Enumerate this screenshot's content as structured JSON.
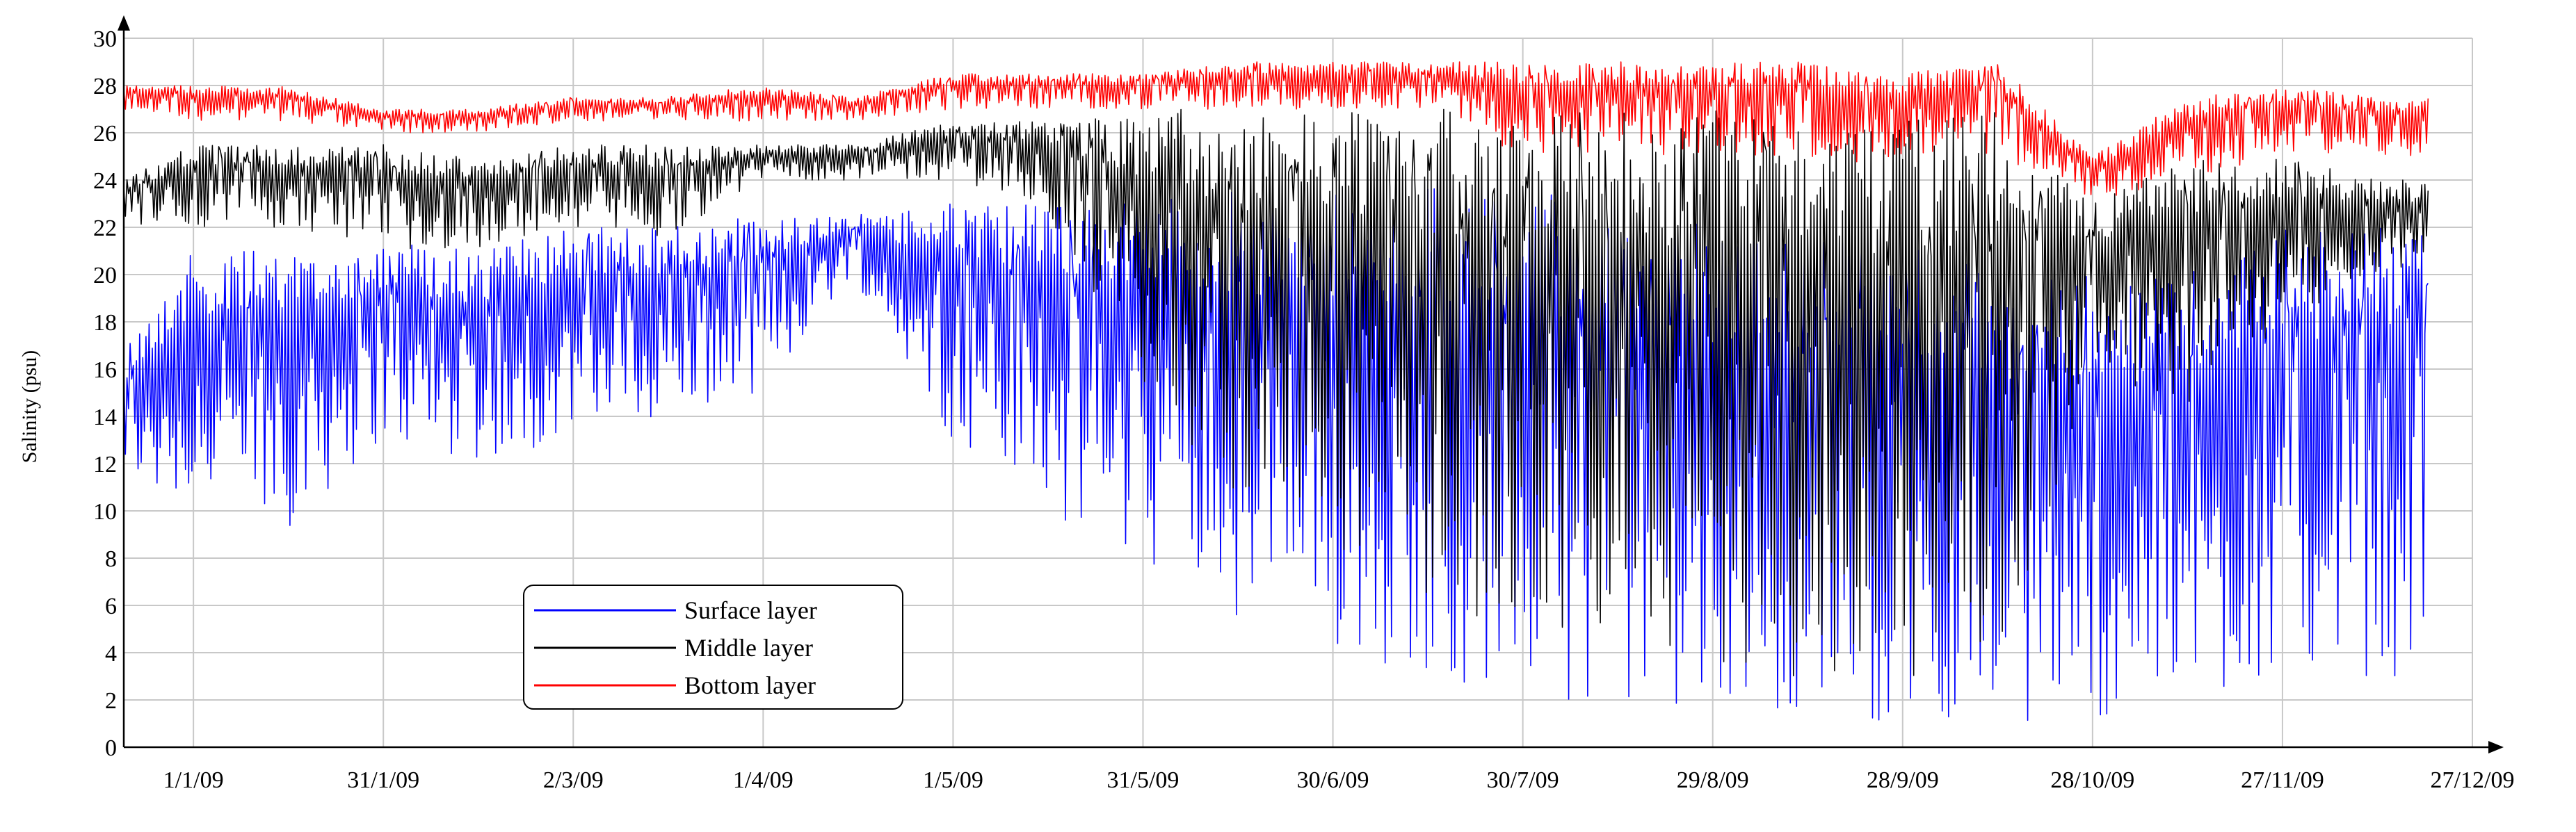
{
  "chart_data": {
    "type": "line",
    "title": "",
    "xlabel": "",
    "ylabel": "Salinity (psu)",
    "xlim": [
      "2008-12-21",
      "2009-12-27"
    ],
    "ylim": [
      0,
      30
    ],
    "yticks": [
      0,
      2,
      4,
      6,
      8,
      10,
      12,
      14,
      16,
      18,
      20,
      22,
      24,
      26,
      28,
      30
    ],
    "xticks": [
      "1/1/09",
      "31/1/09",
      "2/3/09",
      "1/4/09",
      "1/5/09",
      "31/5/09",
      "30/6/09",
      "30/7/09",
      "29/8/09",
      "28/9/09",
      "28/10/09",
      "27/11/09",
      "27/12/09"
    ],
    "xtick_dates": [
      "2009-01-01",
      "2009-01-31",
      "2009-03-02",
      "2009-04-01",
      "2009-05-01",
      "2009-05-31",
      "2009-06-30",
      "2009-07-30",
      "2009-08-29",
      "2009-09-28",
      "2009-10-28",
      "2009-11-27",
      "2009-12-27"
    ],
    "grid": true,
    "legend_position": "bottom-left",
    "series": [
      {
        "name": "Surface layer",
        "color": "#0000ff",
        "x": [
          "2008-12-21",
          "2009-01-01",
          "2009-01-15",
          "2009-01-31",
          "2009-02-14",
          "2009-03-02",
          "2009-03-16",
          "2009-04-01",
          "2009-04-15",
          "2009-05-01",
          "2009-05-15",
          "2009-05-31",
          "2009-06-15",
          "2009-06-30",
          "2009-07-15",
          "2009-07-30",
          "2009-08-14",
          "2009-08-29",
          "2009-09-13",
          "2009-09-28",
          "2009-10-13",
          "2009-10-28",
          "2009-11-12",
          "2009-11-27",
          "2009-12-12"
        ],
        "upper": [
          17,
          21,
          21,
          21.5,
          21,
          22,
          22,
          22.5,
          22.5,
          23,
          23,
          23.5,
          23.5,
          23.8,
          23.8,
          24,
          23,
          22,
          22,
          22,
          20,
          20,
          20,
          22,
          22
        ],
        "lower": [
          11,
          10,
          9,
          13,
          12,
          13,
          14,
          15,
          20,
          13,
          10,
          8,
          5,
          4,
          3,
          2,
          2,
          1.5,
          1.5,
          1,
          1,
          1,
          2,
          3,
          3
        ]
      },
      {
        "name": "Middle layer",
        "color": "#000000",
        "x": [
          "2008-12-21",
          "2009-01-01",
          "2009-01-15",
          "2009-01-31",
          "2009-02-14",
          "2009-03-02",
          "2009-03-16",
          "2009-04-01",
          "2009-04-15",
          "2009-05-01",
          "2009-05-15",
          "2009-05-31",
          "2009-06-15",
          "2009-06-30",
          "2009-07-15",
          "2009-07-30",
          "2009-08-14",
          "2009-08-29",
          "2009-09-13",
          "2009-09-28",
          "2009-10-13",
          "2009-10-28",
          "2009-11-12",
          "2009-11-27",
          "2009-12-12"
        ],
        "upper": [
          24,
          25.5,
          25.5,
          25.5,
          25,
          25.5,
          25.5,
          25.5,
          25.5,
          26.5,
          26.5,
          27,
          27,
          27,
          27,
          27,
          27,
          27,
          27,
          26.5,
          27,
          23,
          25,
          25,
          24
        ],
        "lower": [
          22,
          22,
          22,
          21,
          21,
          22,
          21.5,
          24,
          24,
          24,
          23,
          15,
          10,
          8,
          6,
          5,
          4,
          3,
          3,
          3,
          3,
          16,
          14,
          18,
          20
        ]
      },
      {
        "name": "Bottom layer",
        "color": "#ff0000",
        "x": [
          "2008-12-21",
          "2009-01-01",
          "2009-01-15",
          "2009-01-31",
          "2009-02-14",
          "2009-03-02",
          "2009-03-16",
          "2009-04-01",
          "2009-04-15",
          "2009-05-01",
          "2009-05-15",
          "2009-05-31",
          "2009-06-15",
          "2009-06-30",
          "2009-07-15",
          "2009-07-30",
          "2009-08-14",
          "2009-08-29",
          "2009-09-13",
          "2009-09-28",
          "2009-10-13",
          "2009-10-28",
          "2009-11-12",
          "2009-11-27",
          "2009-12-12"
        ],
        "upper": [
          28,
          28,
          28,
          27,
          27,
          27.5,
          27.5,
          28,
          27.5,
          28.5,
          28.5,
          28.5,
          29,
          29,
          29,
          29,
          29,
          29,
          29,
          28.5,
          29,
          25,
          27.5,
          28,
          27.5
        ],
        "lower": [
          27,
          26.5,
          26.5,
          26,
          26,
          26.5,
          26.5,
          26.5,
          26.5,
          27,
          27,
          27,
          27,
          27,
          27,
          25,
          25,
          25,
          25,
          24.5,
          25,
          23,
          24,
          25,
          25
        ]
      }
    ]
  }
}
